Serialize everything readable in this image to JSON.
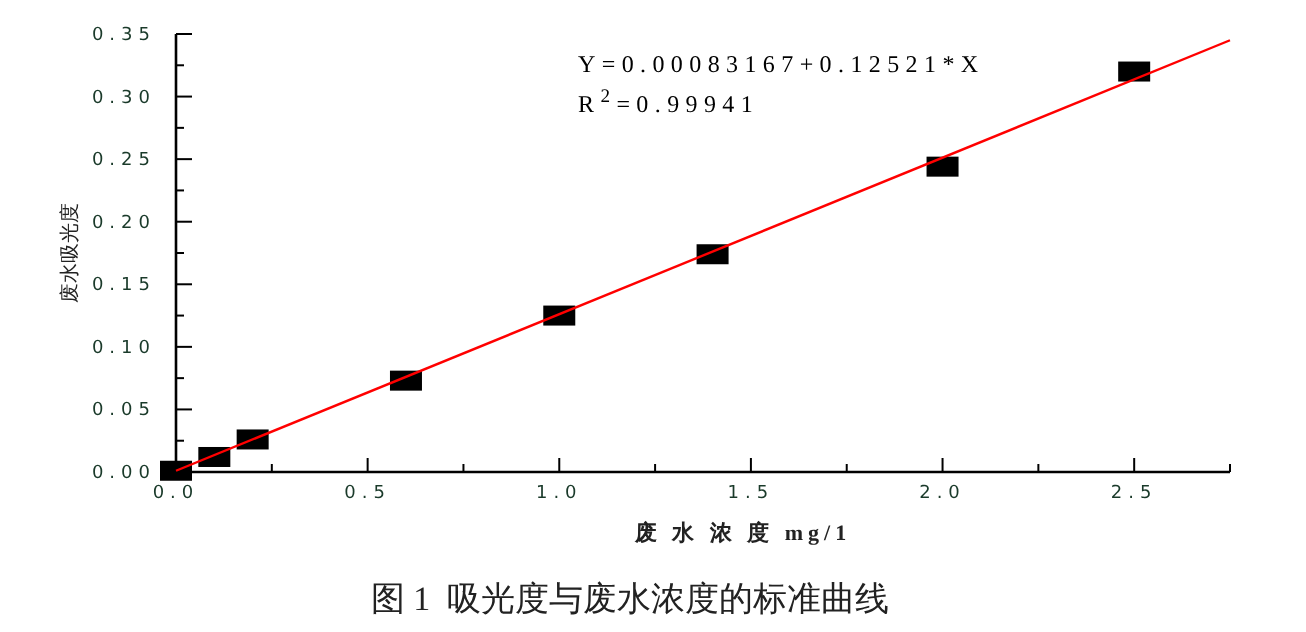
{
  "chart_data": {
    "type": "scatter",
    "title": "图 1  吸光度与废水浓度的标准曲线",
    "xlabel": "废 水 浓 度 mg/1",
    "ylabel": "废水吸光度",
    "annotations": [
      "Y=0.00083167+0.12521*X",
      "R$^{2}$=0.99941"
    ],
    "xlim": [
      0,
      2.75
    ],
    "ylim": [
      0,
      0.35
    ],
    "xticks": [
      {
        "value": 0,
        "label": "0.0"
      },
      {
        "value": 0.5,
        "label": "0.5"
      },
      {
        "value": 1,
        "label": "1.0"
      },
      {
        "value": 1.5,
        "label": "1.5"
      },
      {
        "value": 2,
        "label": "2.0"
      },
      {
        "value": 2.5,
        "label": "2.5"
      }
    ],
    "yticks": [
      {
        "value": 0,
        "label": "0.00"
      },
      {
        "value": 0.05,
        "label": "0.05"
      },
      {
        "value": 0.1,
        "label": "0.10"
      },
      {
        "value": 0.15,
        "label": "0.15"
      },
      {
        "value": 0.2,
        "label": "0.20"
      },
      {
        "value": 0.25,
        "label": "0.25"
      },
      {
        "value": 0.3,
        "label": "0.30"
      },
      {
        "value": 0.35,
        "label": "0.35"
      }
    ],
    "grid": false,
    "series": [
      {
        "marker": "square",
        "color": "#000000",
        "x": [
          0,
          0.1,
          0.2,
          0.6,
          1.0,
          1.4,
          2.0,
          2.5
        ],
        "values": [
          0.001,
          0.012,
          0.026,
          0.073,
          0.125,
          0.174,
          0.244,
          0.32
        ]
      },
      {
        "type": "line",
        "line_style": "solid",
        "color": "#ff0000",
        "x": [
          0,
          2.75
        ],
        "values": [
          0.001,
          0.345
        ]
      }
    ]
  }
}
